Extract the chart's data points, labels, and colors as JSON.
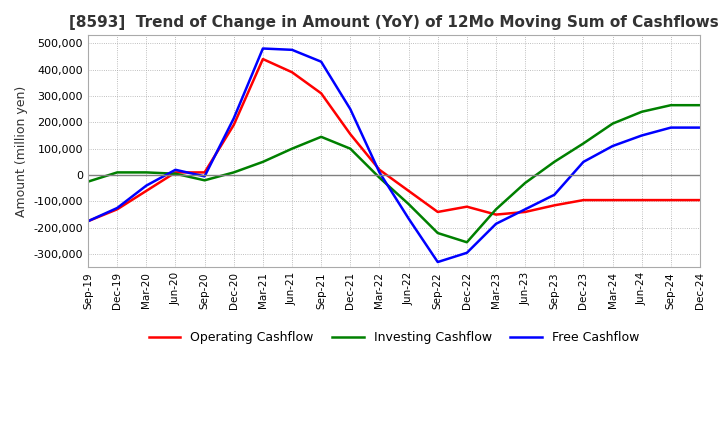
{
  "title": "[8593]  Trend of Change in Amount (YoY) of 12Mo Moving Sum of Cashflows",
  "ylabel": "Amount (million yen)",
  "ylim": [
    -350000,
    530000
  ],
  "yticks": [
    -300000,
    -200000,
    -100000,
    0,
    100000,
    200000,
    300000,
    400000,
    500000
  ],
  "x_labels": [
    "Sep-19",
    "Dec-19",
    "Mar-20",
    "Jun-20",
    "Sep-20",
    "Dec-20",
    "Mar-21",
    "Jun-21",
    "Sep-21",
    "Dec-21",
    "Mar-22",
    "Jun-22",
    "Sep-22",
    "Dec-22",
    "Mar-23",
    "Jun-23",
    "Sep-23",
    "Dec-23",
    "Mar-24",
    "Jun-24",
    "Sep-24",
    "Dec-24"
  ],
  "operating": [
    -175000,
    -130000,
    -60000,
    10000,
    10000,
    190000,
    440000,
    390000,
    310000,
    155000,
    20000,
    -60000,
    -140000,
    -120000,
    -150000,
    -140000,
    -115000,
    -95000,
    -95000,
    -95000,
    -95000,
    -95000
  ],
  "investing": [
    -25000,
    10000,
    10000,
    5000,
    -20000,
    10000,
    50000,
    100000,
    145000,
    100000,
    -10000,
    -110000,
    -220000,
    -255000,
    -130000,
    -30000,
    50000,
    120000,
    195000,
    240000,
    265000,
    265000
  ],
  "free": [
    -175000,
    -125000,
    -40000,
    20000,
    -5000,
    215000,
    480000,
    475000,
    430000,
    250000,
    10000,
    -165000,
    -330000,
    -295000,
    -185000,
    -130000,
    -75000,
    50000,
    110000,
    150000,
    180000,
    180000
  ],
  "line_colors": {
    "operating": "#ff0000",
    "investing": "#008000",
    "free": "#0000ff"
  },
  "line_width": 1.8,
  "bg_color": "#ffffff",
  "grid_color": "#aaaaaa",
  "zero_line_color": "#808080",
  "title_color": "#333333",
  "title_fontsize": 11
}
